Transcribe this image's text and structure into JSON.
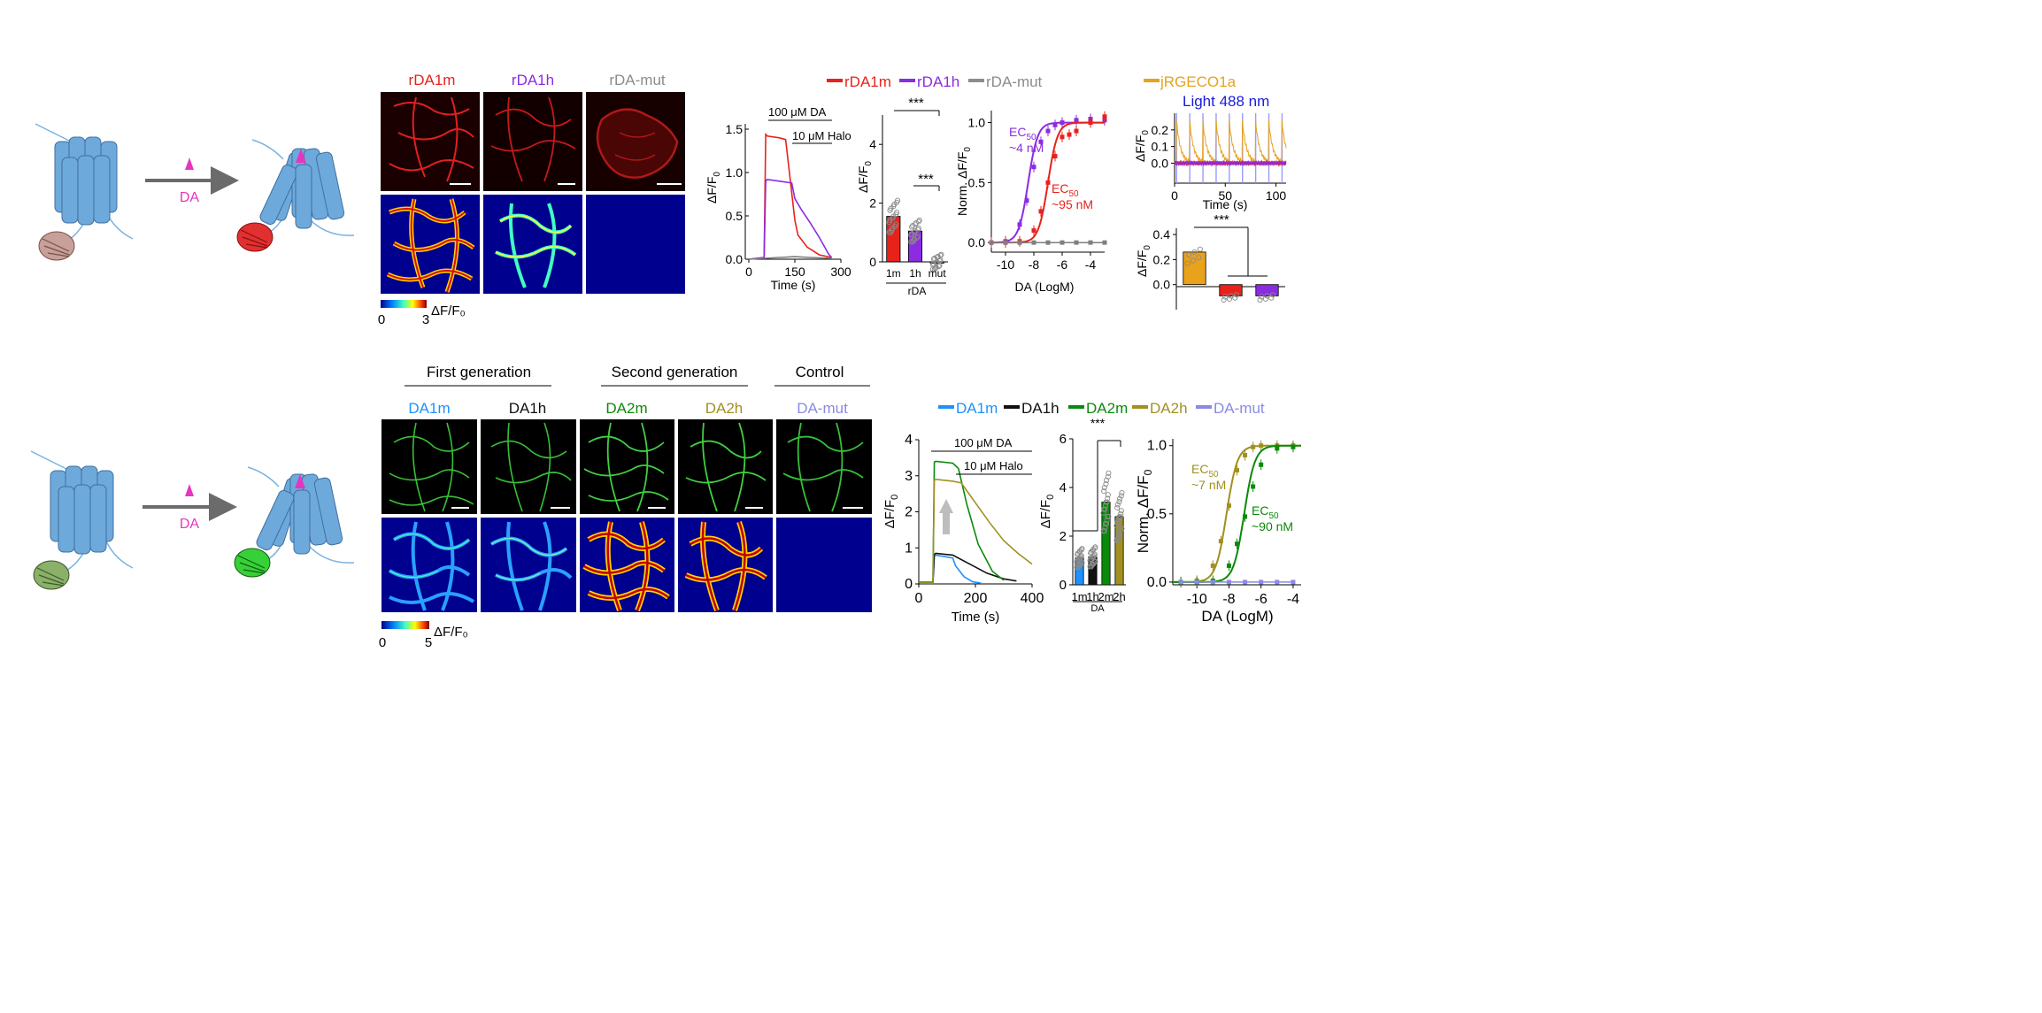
{
  "panel_a": {
    "process_label": "DA",
    "images": {
      "columns": [
        "rDA1m",
        "rDA1h",
        "rDA-mut"
      ],
      "column_colors": [
        "#e8221b",
        "#8b2be2",
        "#8c8c8c"
      ],
      "colorbar": {
        "label": "ΔF/F₀",
        "min": "0",
        "max": "3"
      }
    },
    "legend": [
      {
        "name": "rDA1m",
        "color": "#e8221b"
      },
      {
        "name": "rDA1h",
        "color": "#8b2be2"
      },
      {
        "name": "rDA-mut",
        "color": "#8c8c8c"
      }
    ],
    "trace": {
      "ylabel": "ΔF/F",
      "ylabel_sub": "0",
      "xlabel": "Time (s)",
      "annotations": [
        "100 μM DA",
        "10 μM Halo"
      ]
    },
    "bar": {
      "ylabel": "ΔF/F",
      "ylabel_sub": "0",
      "group_label": "rDA",
      "sig": [
        "***",
        "***"
      ]
    },
    "dose": {
      "ylabel": "Norm. ΔF/F",
      "ylabel_sub": "0",
      "xlabel": "DA (LogM)",
      "ec50_purple": {
        "label": "EC",
        "sub": "50",
        "value": "~4 nM"
      },
      "ec50_red": {
        "label": "EC",
        "sub": "50",
        "value": "~95 nM"
      }
    },
    "light": {
      "legend": "jRGECO1a",
      "title": "Light 488 nm",
      "ylabel": "ΔF/F",
      "ylabel_sub": "0",
      "xlabel": "Time (s)"
    },
    "light_bar": {
      "ylabel": "ΔF/F",
      "ylabel_sub": "0",
      "sig": "***"
    }
  },
  "panel_b": {
    "process_label": "DA",
    "generations": [
      "First generation",
      "Second generation",
      "Control"
    ],
    "images": {
      "columns": [
        "DA1m",
        "DA1h",
        "DA2m",
        "DA2h",
        "DA-mut"
      ],
      "column_colors": [
        "#1e90ff",
        "#111111",
        "#0a8a0a",
        "#a09020",
        "#8a8ae6"
      ],
      "colorbar": {
        "label": "ΔF/F₀",
        "min": "0",
        "max": "5"
      }
    },
    "legend": [
      {
        "name": "DA1m",
        "color": "#1e90ff"
      },
      {
        "name": "DA1h",
        "color": "#111111"
      },
      {
        "name": "DA2m",
        "color": "#0a8a0a"
      },
      {
        "name": "DA2h",
        "color": "#a09020"
      },
      {
        "name": "DA-mut",
        "color": "#8a8ae6"
      }
    ],
    "trace": {
      "ylabel": "ΔF/F",
      "ylabel_sub": "0",
      "xlabel": "Time (s)",
      "annotations": [
        "100 μM DA",
        "10 μM Halo"
      ]
    },
    "bar": {
      "ylabel": "ΔF/F",
      "ylabel_sub": "0",
      "group_label": "DA",
      "sig": "***"
    },
    "dose": {
      "ylabel": "Norm. ΔF/F",
      "ylabel_sub": "0",
      "xlabel": "DA (LogM)",
      "ec50_olive": {
        "label": "EC",
        "sub": "50",
        "value": "~7 nM"
      },
      "ec50_green": {
        "label": "EC",
        "sub": "50",
        "value": "~90 nM"
      }
    }
  },
  "chart_data": [
    {
      "id": "a-trace",
      "type": "line",
      "xlim": [
        0,
        300
      ],
      "ylim": [
        0,
        1.5
      ],
      "xticks": [
        0,
        150,
        300
      ],
      "yticks": [
        0.0,
        0.5,
        1.0,
        1.5
      ],
      "series": [
        {
          "name": "rDA1m",
          "color": "#e8221b",
          "x": [
            0,
            50,
            55,
            60,
            100,
            120,
            150,
            160,
            190,
            230,
            270
          ],
          "y": [
            0,
            0.02,
            1.44,
            1.42,
            1.4,
            1.38,
            0.45,
            0.28,
            0.14,
            0.05,
            0.02
          ]
        },
        {
          "name": "rDA1h",
          "color": "#8b2be2",
          "x": [
            0,
            50,
            55,
            60,
            100,
            140,
            150,
            170,
            200,
            230,
            260,
            270
          ],
          "y": [
            0,
            0.02,
            0.9,
            0.92,
            0.9,
            0.88,
            0.7,
            0.58,
            0.42,
            0.25,
            0.06,
            0.02
          ]
        },
        {
          "name": "rDA-mut",
          "color": "#7f7f7f",
          "x": [
            0,
            50,
            100,
            150,
            200,
            270
          ],
          "y": [
            0,
            0.01,
            0.02,
            0.03,
            0.02,
            0.01
          ]
        }
      ]
    },
    {
      "id": "a-bar",
      "type": "bar",
      "categories": [
        "1m",
        "1h",
        "mut"
      ],
      "values": [
        1.55,
        1.05,
        0.0
      ],
      "ylim": [
        0,
        5
      ],
      "yticks": [
        0,
        2,
        4
      ],
      "colors": [
        "#e8221b",
        "#8b2be2",
        "#8c8c8c"
      ]
    },
    {
      "id": "a-dose",
      "type": "line",
      "xlim": [
        -11,
        -3
      ],
      "ylim": [
        -0.08,
        1.1
      ],
      "xticks": [
        -10,
        -8,
        -6,
        -4
      ],
      "yticks": [
        0.0,
        0.5,
        1.0
      ],
      "series": [
        {
          "name": "rDA1h",
          "color": "#8b2be2",
          "ec50_log": -8.4,
          "x": [
            -11,
            -10,
            -9,
            -8.5,
            -8,
            -7.5,
            -7,
            -6.5,
            -6,
            -5,
            -4,
            -3
          ],
          "y": [
            0.0,
            0.01,
            0.15,
            0.35,
            0.63,
            0.84,
            0.93,
            0.98,
            1.0,
            1.02,
            1.03,
            1.02
          ]
        },
        {
          "name": "rDA1m",
          "color": "#e8221b",
          "ec50_log": -7.0,
          "x": [
            -11,
            -10,
            -9,
            -8,
            -7.5,
            -7,
            -6.5,
            -6,
            -5.5,
            -5,
            -4,
            -3
          ],
          "y": [
            0.0,
            0.0,
            0.01,
            0.1,
            0.26,
            0.5,
            0.72,
            0.88,
            0.9,
            0.93,
            1.0,
            1.05
          ]
        },
        {
          "name": "rDA-mut",
          "color": "#7f7f7f",
          "x": [
            -11,
            -10,
            -9,
            -8,
            -7,
            -6,
            -5,
            -4,
            -3
          ],
          "y": [
            0.0,
            0.0,
            0.0,
            0.0,
            0.0,
            0.0,
            0.0,
            0.0,
            0.0
          ]
        }
      ]
    },
    {
      "id": "a-light",
      "type": "line",
      "xlim": [
        0,
        110
      ],
      "ylim": [
        -0.12,
        0.3
      ],
      "xticks": [
        0,
        50,
        100
      ],
      "yticks": [
        0.0,
        0.1,
        0.2
      ],
      "stim_times": [
        2,
        15,
        28,
        41,
        54,
        67,
        80,
        93,
        106
      ],
      "series": [
        {
          "name": "jRGECO1a",
          "color": "#e8a21b",
          "peak": 0.25
        },
        {
          "name": "rDA1m",
          "color": "#e8221b",
          "peak": 0.0
        },
        {
          "name": "rDA1h",
          "color": "#8b2be2",
          "peak": 0.0
        }
      ]
    },
    {
      "id": "a-light-bar",
      "type": "bar",
      "categories": [
        "jRGECO1a",
        "rDA1m",
        "rDA1h"
      ],
      "values": [
        0.26,
        -0.09,
        -0.09
      ],
      "ylim": [
        -0.2,
        0.45
      ],
      "yticks": [
        0.0,
        0.2,
        0.4
      ],
      "colors": [
        "#e8a21b",
        "#e8221b",
        "#8b2be2"
      ]
    },
    {
      "id": "b-trace",
      "type": "line",
      "xlim": [
        0,
        400
      ],
      "ylim": [
        0,
        4
      ],
      "xticks": [
        0,
        200,
        400
      ],
      "yticks": [
        0,
        1,
        2,
        3,
        4
      ],
      "series": [
        {
          "name": "DA1m",
          "color": "#1e90ff",
          "x": [
            0,
            50,
            55,
            60,
            120,
            130,
            160,
            190,
            220
          ],
          "y": [
            0.05,
            0.05,
            0.78,
            0.8,
            0.72,
            0.5,
            0.2,
            0.06,
            0.02
          ]
        },
        {
          "name": "DA1h",
          "color": "#111111",
          "x": [
            0,
            50,
            55,
            60,
            120,
            180,
            240,
            300,
            345
          ],
          "y": [
            0.05,
            0.05,
            0.82,
            0.85,
            0.8,
            0.55,
            0.3,
            0.14,
            0.08
          ]
        },
        {
          "name": "DA2m",
          "color": "#0a8a0a",
          "x": [
            0,
            50,
            55,
            60,
            120,
            140,
            170,
            210,
            260,
            300
          ],
          "y": [
            0.05,
            0.05,
            3.38,
            3.4,
            3.35,
            3.2,
            2.2,
            1.1,
            0.35,
            0.1
          ]
        },
        {
          "name": "DA2h",
          "color": "#a09020",
          "x": [
            0,
            50,
            55,
            60,
            120,
            150,
            200,
            250,
            300,
            350,
            400
          ],
          "y": [
            0.05,
            0.05,
            2.88,
            2.9,
            2.85,
            2.8,
            2.25,
            1.7,
            1.2,
            0.85,
            0.55
          ]
        }
      ]
    },
    {
      "id": "b-bar",
      "type": "bar",
      "categories": [
        "1m",
        "1h",
        "2m",
        "2h"
      ],
      "values": [
        1.1,
        1.15,
        3.4,
        2.8
      ],
      "ylim": [
        0,
        6
      ],
      "yticks": [
        0,
        2,
        4,
        6
      ],
      "colors": [
        "#1e90ff",
        "#111111",
        "#0a8a0a",
        "#a09020"
      ]
    },
    {
      "id": "b-dose",
      "type": "line",
      "xlim": [
        -11.5,
        -3.5
      ],
      "ylim": [
        -0.02,
        1.05
      ],
      "xticks": [
        -10,
        -8,
        -6,
        -4
      ],
      "yticks": [
        0.0,
        0.5,
        1.0
      ],
      "series": [
        {
          "name": "DA2h",
          "color": "#a09020",
          "ec50_log": -8.15,
          "x": [
            -11,
            -10,
            -9,
            -8.5,
            -8,
            -7.5,
            -7,
            -6.5,
            -6,
            -5,
            -4
          ],
          "y": [
            0.0,
            0.01,
            0.12,
            0.3,
            0.56,
            0.82,
            0.93,
            0.99,
            1.0,
            1.0,
            1.0
          ]
        },
        {
          "name": "DA2m",
          "color": "#0a8a0a",
          "ec50_log": -7.05,
          "x": [
            -11,
            -10,
            -9,
            -8,
            -7.5,
            -7,
            -6.5,
            -6,
            -5,
            -4
          ],
          "y": [
            0.0,
            0.0,
            0.01,
            0.12,
            0.28,
            0.48,
            0.7,
            0.86,
            0.98,
            0.99
          ]
        },
        {
          "name": "DA-mut",
          "color": "#8a8ae6",
          "x": [
            -11,
            -10,
            -9,
            -8,
            -7,
            -6,
            -5,
            -4
          ],
          "y": [
            0.0,
            0.0,
            0.0,
            0.0,
            0.0,
            0.0,
            0.0,
            0.0
          ]
        }
      ]
    }
  ]
}
